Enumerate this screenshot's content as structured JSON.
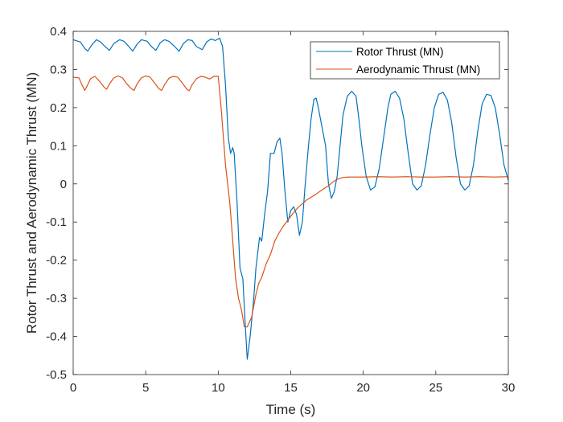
{
  "chart_data": {
    "type": "line",
    "title": "",
    "xlabel": "Time (s)",
    "ylabel": "Rotor Thrust and Aerodynamic Thrust (MN)",
    "xlim": [
      0,
      30
    ],
    "ylim": [
      -0.5,
      0.4
    ],
    "xticks": [
      0,
      5,
      10,
      15,
      20,
      25,
      30
    ],
    "xtick_labels": [
      "0",
      "5",
      "10",
      "15",
      "20",
      "25",
      "30"
    ],
    "yticks": [
      -0.5,
      -0.4,
      -0.3,
      -0.2,
      -0.1,
      0,
      0.1,
      0.2,
      0.3,
      0.4
    ],
    "ytick_labels": [
      "-0.5",
      "-0.4",
      "-0.3",
      "-0.2",
      "-0.1",
      "0",
      "0.1",
      "0.2",
      "0.3",
      "0.4"
    ],
    "grid": false,
    "legend_position": "top-right",
    "series": [
      {
        "name": "Rotor Thrust (MN)",
        "color": "#0072BD",
        "x": [
          0,
          0.5,
          0.8,
          1.0,
          1.3,
          1.6,
          1.9,
          2.2,
          2.5,
          2.8,
          3.2,
          3.5,
          3.8,
          4.1,
          4.4,
          4.7,
          5.1,
          5.4,
          5.7,
          6.0,
          6.3,
          6.6,
          7.0,
          7.3,
          7.6,
          7.9,
          8.2,
          8.5,
          8.9,
          9.2,
          9.5,
          9.8,
          10.1,
          10.3,
          10.5,
          10.7,
          10.85,
          11.0,
          11.1,
          11.3,
          11.5,
          11.7,
          11.85,
          12.0,
          12.2,
          12.45,
          12.6,
          12.85,
          13.0,
          13.2,
          13.4,
          13.6,
          13.85,
          14.05,
          14.25,
          14.4,
          14.6,
          14.8,
          15.0,
          15.2,
          15.4,
          15.6,
          15.8,
          16.0,
          16.2,
          16.4,
          16.6,
          16.75,
          16.9,
          17.1,
          17.4,
          17.6,
          17.8,
          18.0,
          18.2,
          18.4,
          18.6,
          18.9,
          19.2,
          19.5,
          19.7,
          19.9,
          20.2,
          20.5,
          20.8,
          21.1,
          21.4,
          21.7,
          21.9,
          22.2,
          22.5,
          22.8,
          23.1,
          23.4,
          23.7,
          24.0,
          24.3,
          24.6,
          24.9,
          25.2,
          25.5,
          25.8,
          26.1,
          26.4,
          26.7,
          27.0,
          27.3,
          27.6,
          27.9,
          28.2,
          28.5,
          28.8,
          29.1,
          29.4,
          29.7,
          30.0
        ],
        "y": [
          0.378,
          0.372,
          0.355,
          0.348,
          0.365,
          0.378,
          0.372,
          0.36,
          0.35,
          0.368,
          0.378,
          0.374,
          0.362,
          0.348,
          0.366,
          0.378,
          0.374,
          0.36,
          0.35,
          0.37,
          0.378,
          0.374,
          0.36,
          0.348,
          0.368,
          0.378,
          0.376,
          0.36,
          0.352,
          0.372,
          0.38,
          0.376,
          0.382,
          0.36,
          0.26,
          0.12,
          0.08,
          0.095,
          0.08,
          -0.05,
          -0.22,
          -0.25,
          -0.36,
          -0.46,
          -0.4,
          -0.3,
          -0.22,
          -0.14,
          -0.15,
          -0.08,
          -0.02,
          0.08,
          0.08,
          0.11,
          0.12,
          0.08,
          -0.02,
          -0.1,
          -0.07,
          -0.06,
          -0.08,
          -0.135,
          -0.1,
          0.0,
          0.09,
          0.17,
          0.222,
          0.225,
          0.2,
          0.16,
          0.1,
          0.0,
          -0.038,
          -0.02,
          0.02,
          0.1,
          0.18,
          0.23,
          0.243,
          0.23,
          0.17,
          0.1,
          0.02,
          -0.016,
          -0.008,
          0.04,
          0.12,
          0.2,
          0.235,
          0.243,
          0.225,
          0.17,
          0.08,
          0.0,
          -0.016,
          -0.005,
          0.05,
          0.13,
          0.2,
          0.235,
          0.24,
          0.22,
          0.16,
          0.07,
          0.0,
          -0.016,
          -0.005,
          0.05,
          0.14,
          0.21,
          0.235,
          0.232,
          0.2,
          0.13,
          0.05,
          0.01
        ]
      },
      {
        "name": "Aerodynamic Thrust (MN)",
        "color": "#D95319",
        "x": [
          0,
          0.4,
          0.6,
          0.8,
          1.0,
          1.2,
          1.5,
          1.8,
          2.1,
          2.3,
          2.5,
          2.8,
          3.1,
          3.4,
          3.7,
          4.0,
          4.2,
          4.4,
          4.7,
          5.0,
          5.3,
          5.6,
          5.9,
          6.1,
          6.3,
          6.6,
          6.9,
          7.2,
          7.5,
          7.8,
          8.0,
          8.2,
          8.5,
          8.8,
          9.1,
          9.4,
          9.7,
          10.0,
          10.2,
          10.5,
          10.8,
          11.0,
          11.2,
          11.4,
          11.6,
          11.8,
          12.0,
          12.3,
          12.6,
          12.8,
          13.0,
          13.3,
          13.6,
          13.9,
          14.2,
          14.5,
          14.8,
          15.0,
          15.2,
          15.5,
          15.8,
          16.1,
          16.4,
          16.7,
          17.0,
          17.3,
          17.6,
          17.9,
          18.2,
          18.6,
          19.0,
          20.0,
          21.0,
          22.0,
          23.0,
          24.0,
          25.0,
          26.0,
          27.0,
          28.0,
          29.0,
          30.0
        ],
        "y": [
          0.28,
          0.278,
          0.26,
          0.245,
          0.26,
          0.276,
          0.282,
          0.27,
          0.255,
          0.248,
          0.262,
          0.278,
          0.283,
          0.278,
          0.262,
          0.25,
          0.245,
          0.262,
          0.278,
          0.283,
          0.28,
          0.265,
          0.25,
          0.245,
          0.26,
          0.277,
          0.282,
          0.28,
          0.266,
          0.25,
          0.244,
          0.26,
          0.276,
          0.282,
          0.28,
          0.275,
          0.282,
          0.282,
          0.2,
          0.05,
          -0.05,
          -0.15,
          -0.25,
          -0.3,
          -0.33,
          -0.375,
          -0.375,
          -0.35,
          -0.29,
          -0.26,
          -0.245,
          -0.21,
          -0.185,
          -0.15,
          -0.128,
          -0.11,
          -0.095,
          -0.085,
          -0.075,
          -0.062,
          -0.052,
          -0.042,
          -0.035,
          -0.028,
          -0.02,
          -0.012,
          -0.005,
          0.005,
          0.012,
          0.017,
          0.018,
          0.018,
          0.019,
          0.018,
          0.019,
          0.018,
          0.018,
          0.019,
          0.018,
          0.019,
          0.018,
          0.019
        ]
      }
    ]
  }
}
